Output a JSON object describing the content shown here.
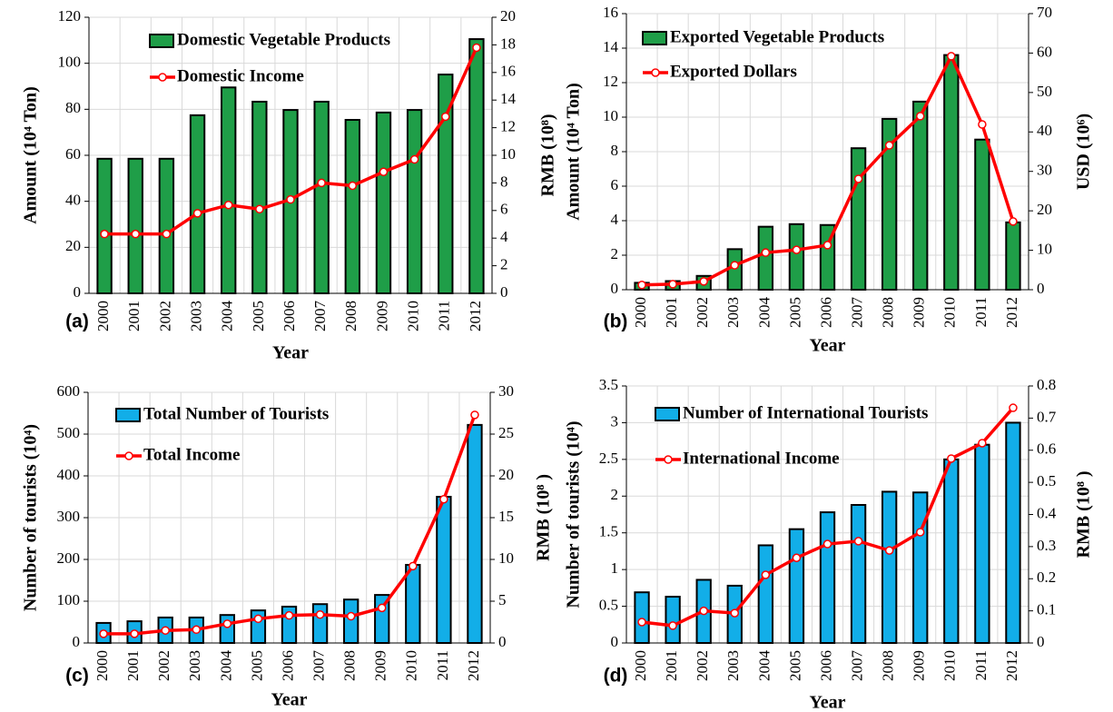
{
  "chart_data": [
    {
      "type": "bar",
      "label": "(a)",
      "xlabel": "Year",
      "ylabel": "Amount (10⁴ Ton)",
      "y2label": "RMB (10⁸)",
      "categories": [
        "2000",
        "2001",
        "2002",
        "2003",
        "2004",
        "2005",
        "2006",
        "2007",
        "2008",
        "2009",
        "2010",
        "2011",
        "2012"
      ],
      "series": [
        {
          "name": "Domestic Vegetable Products",
          "type": "bar",
          "color": "#1f9e48",
          "values": [
            58.5,
            58.5,
            58.5,
            77.4,
            89.5,
            83.3,
            79.7,
            83.3,
            75.4,
            78.6,
            79.7,
            95.1,
            110.5
          ]
        },
        {
          "name": "Domestic Income",
          "type": "line",
          "axis": "y2",
          "color": "#ff0000",
          "values": [
            4.3,
            4.3,
            4.3,
            5.8,
            6.4,
            6.1,
            6.8,
            8.0,
            7.8,
            8.8,
            9.7,
            12.8,
            17.8
          ]
        }
      ],
      "ylim": [
        0,
        120
      ],
      "yticks": [
        0,
        20,
        40,
        60,
        80,
        100,
        120
      ],
      "y2lim": [
        0,
        20
      ],
      "y2ticks": [
        0,
        2,
        4,
        6,
        8,
        10,
        12,
        14,
        16,
        18,
        20
      ],
      "grid": true
    },
    {
      "type": "bar",
      "label": "(b)",
      "xlabel": "Year",
      "ylabel": "Amount (10⁴ Ton)",
      "y2label": "USD (10⁶)",
      "categories": [
        "2000",
        "2001",
        "2002",
        "2003",
        "2004",
        "2005",
        "2006",
        "2007",
        "2008",
        "2009",
        "2010",
        "2011",
        "2012"
      ],
      "series": [
        {
          "name": "Exported Vegetable Products",
          "type": "bar",
          "color": "#1f9e48",
          "values": [
            0.4,
            0.5,
            0.8,
            2.35,
            3.65,
            3.8,
            3.75,
            8.2,
            9.9,
            10.9,
            13.6,
            8.7,
            3.9
          ]
        },
        {
          "name": "Exported Dollars",
          "type": "line",
          "axis": "y2",
          "color": "#ff0000",
          "values": [
            1.2,
            1.4,
            2.1,
            6.2,
            9.4,
            10.1,
            11.3,
            28.1,
            36.6,
            44,
            59.2,
            41.9,
            17.3
          ]
        }
      ],
      "ylim": [
        0,
        16
      ],
      "yticks": [
        0,
        2,
        4,
        6,
        8,
        10,
        12,
        14,
        16
      ],
      "y2lim": [
        0,
        70
      ],
      "y2ticks": [
        0,
        10,
        20,
        30,
        40,
        50,
        60,
        70
      ],
      "grid": true
    },
    {
      "type": "bar",
      "label": "(c)",
      "xlabel": "Year",
      "ylabel": "Number of tourists (10⁴)",
      "y2label": "RMB (10⁸ )",
      "categories": [
        "2000",
        "2001",
        "2002",
        "2003",
        "2004",
        "2005",
        "2006",
        "2007",
        "2008",
        "2009",
        "2010",
        "2011",
        "2012"
      ],
      "series": [
        {
          "name": "Total Number of Tourists",
          "type": "bar",
          "color": "#12aee8",
          "values": [
            48,
            52,
            61,
            61,
            67,
            78,
            87,
            93,
            104,
            115,
            187,
            350,
            522
          ]
        },
        {
          "name": "Total Income",
          "type": "line",
          "axis": "y2",
          "color": "#ff0000",
          "values": [
            1.1,
            1.1,
            1.5,
            1.6,
            2.3,
            2.9,
            3.3,
            3.4,
            3.2,
            4.2,
            9.2,
            17.2,
            27.3
          ]
        }
      ],
      "ylim": [
        0,
        600
      ],
      "yticks": [
        0,
        100,
        200,
        300,
        400,
        500,
        600
      ],
      "y2lim": [
        0,
        30
      ],
      "y2ticks": [
        0,
        5,
        10,
        15,
        20,
        25,
        30
      ],
      "grid": true
    },
    {
      "type": "bar",
      "label": "(d)",
      "xlabel": "Year",
      "ylabel": "Number of tourists (10⁴)",
      "y2label": "RMB (10⁸ )",
      "categories": [
        "2000",
        "2001",
        "2002",
        "2003",
        "2004",
        "2005",
        "2006",
        "2007",
        "2008",
        "2009",
        "2010",
        "2011",
        "2012"
      ],
      "series": [
        {
          "name": "Number of International Tourists",
          "type": "bar",
          "color": "#12aee8",
          "values": [
            0.69,
            0.63,
            0.86,
            0.78,
            1.33,
            1.55,
            1.78,
            1.88,
            2.06,
            2.05,
            2.5,
            2.7,
            3.0
          ]
        },
        {
          "name": "International Income",
          "type": "line",
          "axis": "y2",
          "color": "#ff0000",
          "values": [
            0.065,
            0.054,
            0.1,
            0.093,
            0.212,
            0.265,
            0.308,
            0.317,
            0.288,
            0.345,
            0.574,
            0.622,
            0.732
          ]
        }
      ],
      "ylim": [
        0,
        3.5
      ],
      "yticks": [
        0,
        0.5,
        1,
        1.5,
        2,
        2.5,
        3,
        3.5
      ],
      "y2lim": [
        0,
        0.8
      ],
      "y2ticks": [
        0,
        0.1,
        0.2,
        0.3,
        0.4,
        0.5,
        0.6,
        0.7,
        0.8
      ],
      "grid": true
    }
  ]
}
